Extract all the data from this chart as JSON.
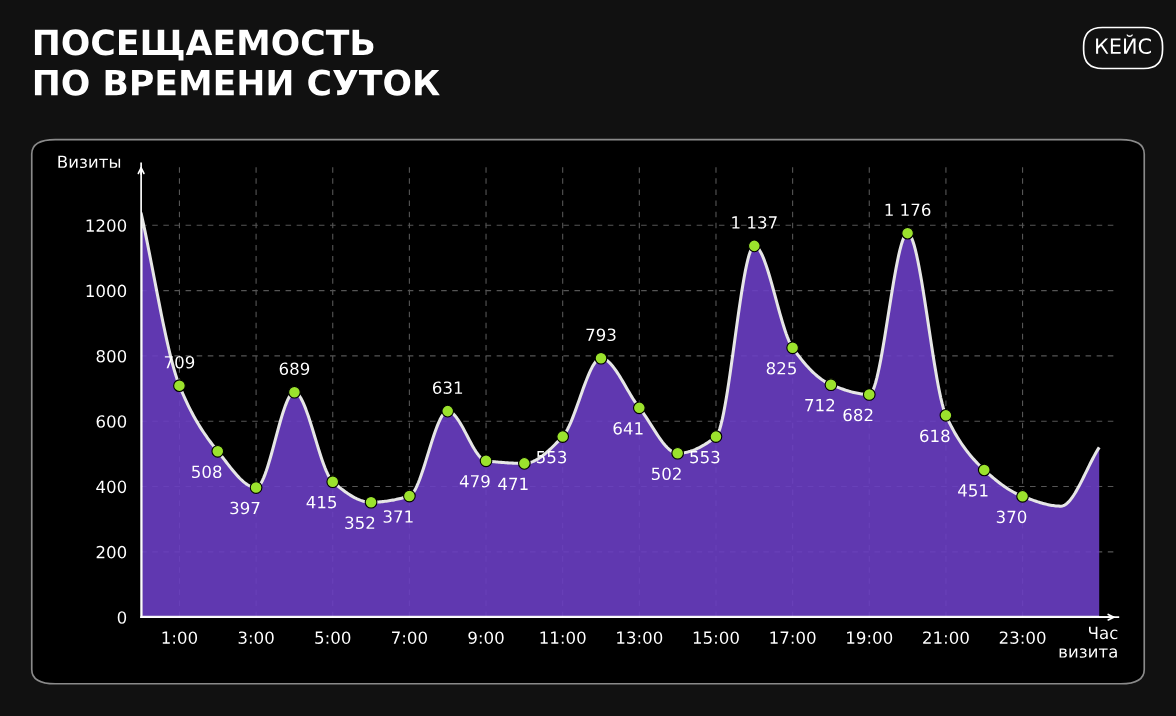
{
  "chart_data": {
    "type": "area",
    "title": "ПОСЕЩАЕМОСТЬ\nПО ВРЕМЕНИ СУТОК",
    "xlabel": "Час\nвизита",
    "ylabel": "Визиты",
    "annotations": [
      "КЕЙС"
    ],
    "series": [
      {
        "color": "#6b3fc4",
        "x": [
          0,
          1,
          2,
          3,
          4,
          5,
          6,
          7,
          8,
          9,
          10,
          11,
          12,
          13,
          14,
          15,
          16,
          17,
          18,
          19,
          20,
          21,
          22,
          23,
          24,
          25
        ],
        "values": [
          1237,
          709,
          508,
          397,
          689,
          415,
          352,
          371,
          631,
          479,
          471,
          553,
          793,
          641,
          502,
          553,
          1137,
          825,
          712,
          682,
          1176,
          618,
          451,
          370,
          340,
          520
        ]
      },
      {
        "type": "scatter",
        "marker": "circle",
        "color": "#9be22d",
        "x": [
          1,
          2,
          3,
          4,
          5,
          6,
          7,
          8,
          9,
          10,
          11,
          12,
          13,
          14,
          15,
          16,
          17,
          18,
          19,
          20,
          21,
          22,
          23
        ],
        "values": [
          709,
          508,
          397,
          689,
          415,
          352,
          371,
          631,
          479,
          471,
          553,
          793,
          641,
          502,
          553,
          1137,
          825,
          712,
          682,
          1176,
          618,
          451,
          370
        ],
        "value_labels": [
          "709",
          "508",
          "397",
          "689",
          "415",
          "352",
          "371",
          "631",
          "479",
          "471",
          "553",
          "793",
          "641",
          "502",
          "553",
          "1 137",
          "825",
          "712",
          "682",
          "1 176",
          "618",
          "451",
          "370"
        ]
      }
    ],
    "xlim": [
      0,
      25.5
    ],
    "ylim": [
      0,
      1390
    ],
    "xticks": [
      {
        "value": 1,
        "label": "1:00"
      },
      {
        "value": 3,
        "label": "3:00"
      },
      {
        "value": 5,
        "label": "5:00"
      },
      {
        "value": 7,
        "label": "7:00"
      },
      {
        "value": 9,
        "label": "9:00"
      },
      {
        "value": 11,
        "label": "11:00"
      },
      {
        "value": 13,
        "label": "13:00"
      },
      {
        "value": 15,
        "label": "15:00"
      },
      {
        "value": 17,
        "label": "17:00"
      },
      {
        "value": 19,
        "label": "19:00"
      },
      {
        "value": 21,
        "label": "21:00"
      },
      {
        "value": 23,
        "label": "23:00"
      }
    ],
    "yticks": [
      0,
      200,
      400,
      600,
      800,
      1000,
      1200
    ],
    "grid": true,
    "line_style": "solid"
  }
}
